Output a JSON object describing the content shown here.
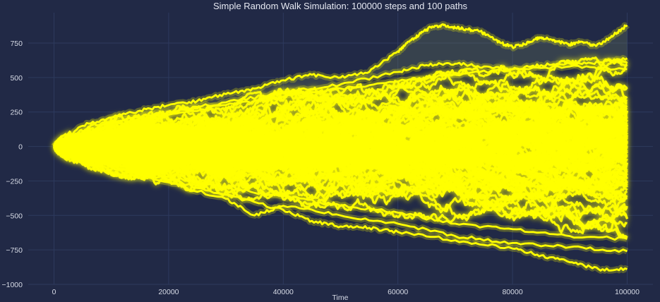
{
  "chart_data": {
    "type": "line",
    "title": "Simple Random Walk Simulation: 100000 steps and 100 paths",
    "xlabel": "Time",
    "ylabel": "",
    "xlim": [
      -4500,
      104500
    ],
    "ylim": [
      -1000,
      970
    ],
    "x_ticks": [
      0,
      20000,
      40000,
      60000,
      80000,
      100000
    ],
    "x_tick_labels": [
      "0",
      "20000",
      "40000",
      "60000",
      "80000",
      "100000"
    ],
    "y_ticks": [
      -1000,
      -750,
      -500,
      -250,
      0,
      250,
      500,
      750
    ],
    "y_tick_labels": [
      "−1000",
      "−750",
      "−500",
      "−250",
      "0",
      "250",
      "500",
      "750"
    ],
    "grid": true,
    "steps": 100000,
    "n_paths": 100,
    "line_color": "#FFFF00",
    "glow_color": "#FFFF00",
    "background_color": "#212946",
    "grid_color": "#2E3A5E",
    "highlighted_paths": [
      {
        "name": "upper-extreme-path",
        "x": [
          0,
          5000,
          10000,
          15000,
          20000,
          25000,
          30000,
          35000,
          40000,
          45000,
          50000,
          55000,
          60000,
          62000,
          64000,
          66000,
          68000,
          70000,
          72000,
          74000,
          76000,
          78000,
          80000,
          82000,
          84000,
          86000,
          88000,
          90000,
          92000,
          94000,
          96000,
          98000,
          100000
        ],
        "values": [
          0,
          150,
          210,
          260,
          300,
          330,
          380,
          420,
          480,
          520,
          500,
          540,
          690,
          760,
          820,
          870,
          880,
          860,
          850,
          840,
          800,
          750,
          720,
          740,
          780,
          790,
          760,
          740,
          760,
          730,
          760,
          820,
          880
        ]
      },
      {
        "name": "second-upper-path",
        "x": [
          0,
          10000,
          20000,
          30000,
          40000,
          50000,
          60000,
          65000,
          70000,
          75000,
          80000,
          85000,
          90000,
          95000,
          100000
        ],
        "values": [
          0,
          180,
          250,
          320,
          390,
          450,
          540,
          590,
          600,
          580,
          560,
          590,
          600,
          610,
          640
        ]
      },
      {
        "name": "third-upper-path",
        "x": [
          0,
          10000,
          20000,
          30000,
          40000,
          50000,
          60000,
          70000,
          80000,
          90000,
          100000
        ],
        "values": [
          0,
          160,
          230,
          300,
          360,
          420,
          470,
          520,
          560,
          580,
          560
        ]
      },
      {
        "name": "lower-extreme-path",
        "x": [
          0,
          10000,
          20000,
          30000,
          40000,
          45000,
          50000,
          55000,
          60000,
          70000,
          80000,
          85000,
          90000,
          95000,
          100000
        ],
        "values": [
          0,
          -150,
          -240,
          -350,
          -460,
          -540,
          -580,
          -590,
          -620,
          -680,
          -740,
          -790,
          -840,
          -890,
          -890
        ]
      },
      {
        "name": "second-lower-path",
        "x": [
          0,
          10000,
          20000,
          30000,
          35000,
          40000,
          50000,
          60000,
          70000,
          80000,
          90000,
          100000
        ],
        "values": [
          0,
          -140,
          -260,
          -380,
          -500,
          -430,
          -500,
          -560,
          -650,
          -700,
          -730,
          -760
        ]
      },
      {
        "name": "third-lower-path",
        "x": [
          0,
          10000,
          20000,
          30000,
          40000,
          50000,
          60000,
          70000,
          80000,
          90000,
          100000
        ],
        "values": [
          0,
          -120,
          -220,
          -300,
          -360,
          -430,
          -480,
          -560,
          -600,
          -650,
          -670
        ]
      }
    ]
  }
}
